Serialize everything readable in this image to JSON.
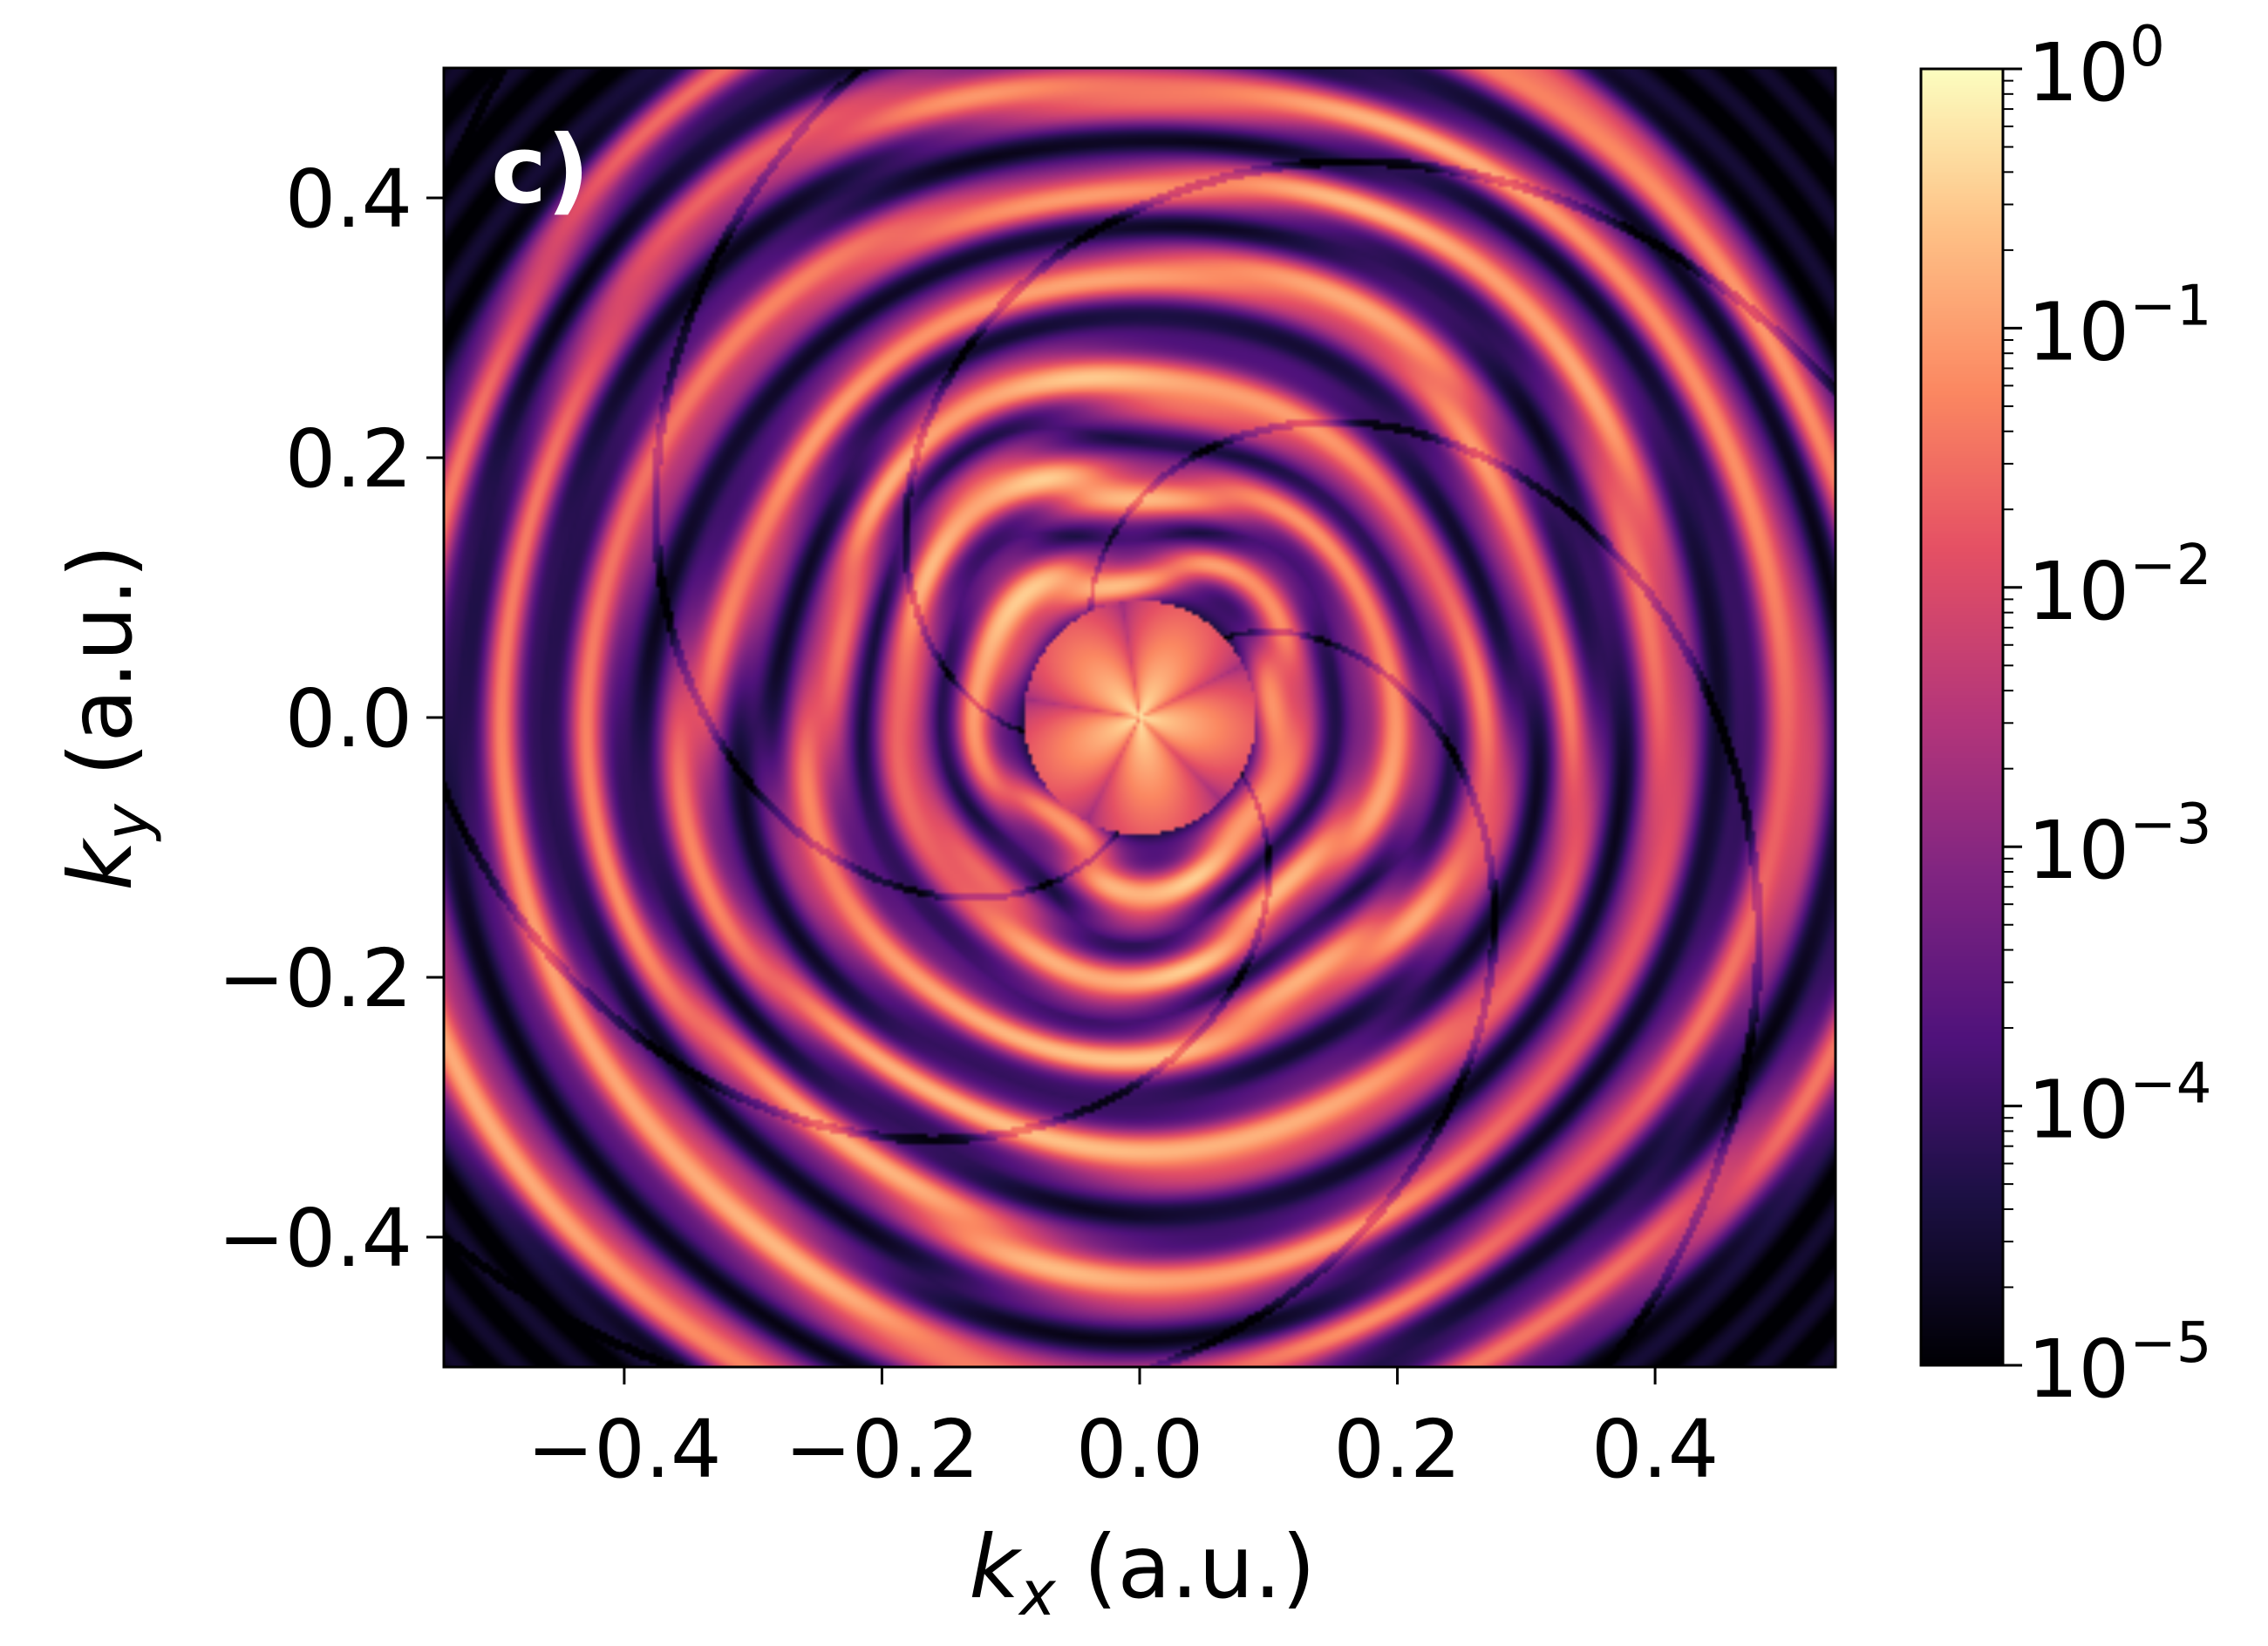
{
  "chart_data": {
    "type": "heatmap",
    "panel_label": "c)",
    "xlabel_var": "k",
    "xlabel_sub": "x",
    "xlabel_unit": " (a.u.)",
    "ylabel_var": "k",
    "ylabel_sub": "y",
    "ylabel_unit": " (a.u.)",
    "xlim": [
      -0.54,
      0.54
    ],
    "ylim": [
      -0.5,
      0.5
    ],
    "x_ticks": [
      {
        "value": -0.4,
        "label": "−0.4"
      },
      {
        "value": -0.2,
        "label": "−0.2"
      },
      {
        "value": 0.0,
        "label": "0.0"
      },
      {
        "value": 0.2,
        "label": "0.2"
      },
      {
        "value": 0.4,
        "label": "0.4"
      }
    ],
    "y_ticks": [
      {
        "value": -0.4,
        "label": "−0.4"
      },
      {
        "value": -0.2,
        "label": "−0.2"
      },
      {
        "value": 0.0,
        "label": "0.0"
      },
      {
        "value": 0.2,
        "label": "0.2"
      },
      {
        "value": 0.4,
        "label": "0.4"
      }
    ],
    "colorbar": {
      "scale": "log",
      "range": [
        1e-05,
        1
      ],
      "colormap": "magma",
      "ticks": [
        {
          "value": 1.0,
          "base": "10",
          "exp": "0"
        },
        {
          "value": 0.1,
          "base": "10",
          "exp": "−1"
        },
        {
          "value": 0.01,
          "base": "10",
          "exp": "−2"
        },
        {
          "value": 0.001,
          "base": "10",
          "exp": "−3"
        },
        {
          "value": 0.0001,
          "base": "10",
          "exp": "−4"
        },
        {
          "value": 1e-05,
          "base": "10",
          "exp": "−5"
        }
      ]
    },
    "pattern": {
      "description_free": true,
      "peak_value": 1.0,
      "rings_k": [
        0.12,
        0.19,
        0.26,
        0.34,
        0.42,
        0.5,
        0.58
      ],
      "center_lobes": 5
    }
  }
}
